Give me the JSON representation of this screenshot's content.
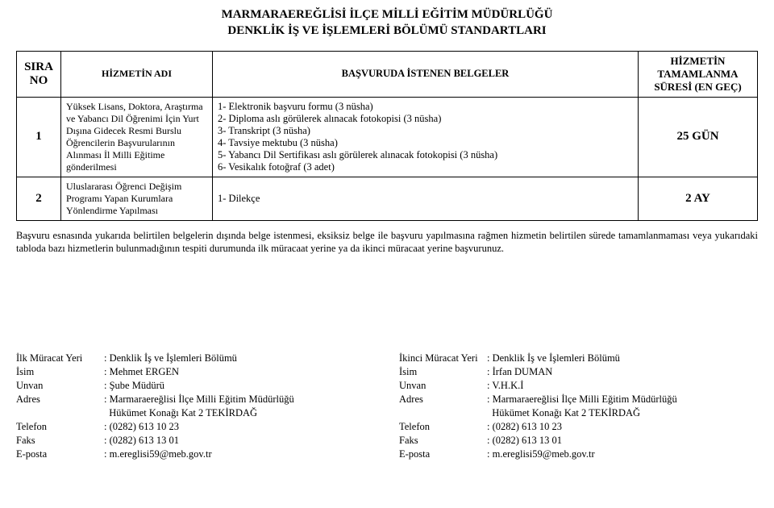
{
  "title_line1": "MARMARAEREĞLİSİ İLÇE MİLLİ EĞİTİM MÜDÜRLÜĞÜ",
  "title_line2": "DENKLİK İŞ VE İŞLEMLERİ BÖLÜMÜ STANDARTLARI",
  "columns": {
    "no": "SIRA NO",
    "adi": "HİZMETİN ADI",
    "doc": "BAŞVURUDA İSTENEN BELGELER",
    "sure": "HİZMETİN TAMAMLANMA SÜRESİ (EN GEÇ)"
  },
  "rows": [
    {
      "no": "1",
      "adi": "Yüksek Lisans, Doktora, Araştırma ve Yabancı Dil Öğrenimi İçin Yurt Dışına Gidecek Resmi Burslu Öğrencilerin Başvurularının Alınması İl Milli Eğitime gönderilmesi",
      "doc": "1- Elektronik başvuru formu (3 nüsha)\n2- Diploma aslı görülerek alınacak fotokopisi (3 nüsha)\n3- Transkript (3 nüsha)\n4- Tavsiye mektubu (3 nüsha)\n5- Yabancı Dil Sertifikası aslı görülerek alınacak fotokopisi (3 nüsha)\n6- Vesikalık fotoğraf (3 adet)",
      "sure": "25 GÜN"
    },
    {
      "no": "2",
      "adi": "Uluslararası Öğrenci Değişim Programı Yapan Kurumlara Yönlendirme Yapılması",
      "doc": "1- Dilekçe",
      "sure": "2 AY"
    }
  ],
  "note": "Başvuru esnasında yukarıda belirtilen belgelerin dışında belge istenmesi, eksiksiz belge ile başvuru yapılmasına rağmen hizmetin belirtilen sürede tamamlanmaması veya yukarıdaki tabloda bazı hizmetlerin bulunmadığının tespiti durumunda ilk müracaat yerine ya da ikinci müracaat yerine başvurunuz.",
  "contact_labels": {
    "yeri_ilk": "İlk Müracat Yeri",
    "yeri_ikinci": "İkinci Müracat Yeri",
    "isim": "İsim",
    "unvan": "Unvan",
    "adres": "Adres",
    "tel": "Telefon",
    "faks": "Faks",
    "eposta": "E-posta"
  },
  "contact_left": {
    "yeri": "Denklik İş ve İşlemleri Bölümü",
    "isim": "Mehmet ERGEN",
    "unvan": "Şube Müdürü",
    "adres1": "Marmaraereğlisi İlçe Milli Eğitim Müdürlüğü",
    "adres2": "Hükümet Konağı Kat 2 TEKİRDAĞ",
    "tel": "(0282) 613 10 23",
    "faks": "(0282) 613 13 01",
    "eposta": "m.ereglisi59@meb.gov.tr"
  },
  "contact_right": {
    "yeri": "Denklik İş ve İşlemleri Bölümü",
    "isim": "İrfan DUMAN",
    "unvan": "V.H.K.İ",
    "adres1": "Marmaraereğlisi İlçe Milli Eğitim Müdürlüğü",
    "adres2": "Hükümet Konağı Kat 2 TEKİRDAĞ",
    "tel": "(0282) 613 10 23",
    "faks": "(0282) 613 13 01",
    "eposta": "m.ereglisi59@meb.gov.tr"
  }
}
